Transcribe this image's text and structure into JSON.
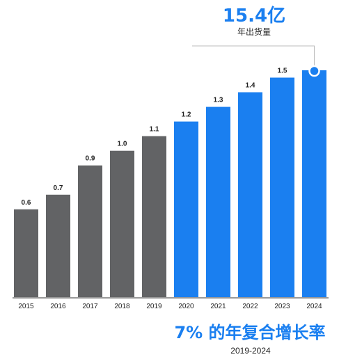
{
  "chart_data": {
    "type": "bar",
    "categories": [
      "2015",
      "2016",
      "2017",
      "2018",
      "2019",
      "2020",
      "2021",
      "2022",
      "2023",
      "2024"
    ],
    "values": [
      0.6,
      0.7,
      0.9,
      1.0,
      1.1,
      1.2,
      1.3,
      1.4,
      1.5,
      null
    ],
    "value_labels": [
      "0.6",
      "0.7",
      "0.9",
      "1.0",
      "1.1",
      "1.2",
      "1.3",
      "1.4",
      "1.5",
      ""
    ],
    "bar_colors": [
      "#626365",
      "#626365",
      "#626365",
      "#626365",
      "#626365",
      "#1a7ff0",
      "#1a7ff0",
      "#1a7ff0",
      "#1a7ff0",
      "#1a7ff0"
    ],
    "highlight": {
      "category": "2024",
      "value": "15.4亿",
      "label": "年出货量"
    },
    "growth": {
      "text": "7% 的年复合增长率",
      "period": "2019-2024"
    },
    "ylim": [
      0,
      1.55
    ],
    "grid": false,
    "title": "",
    "xlabel": "",
    "ylabel": ""
  },
  "colors": {
    "gray": "#626365",
    "blue": "#1a7ff0",
    "axis": "#333333",
    "leader": "#bbbbbb"
  }
}
